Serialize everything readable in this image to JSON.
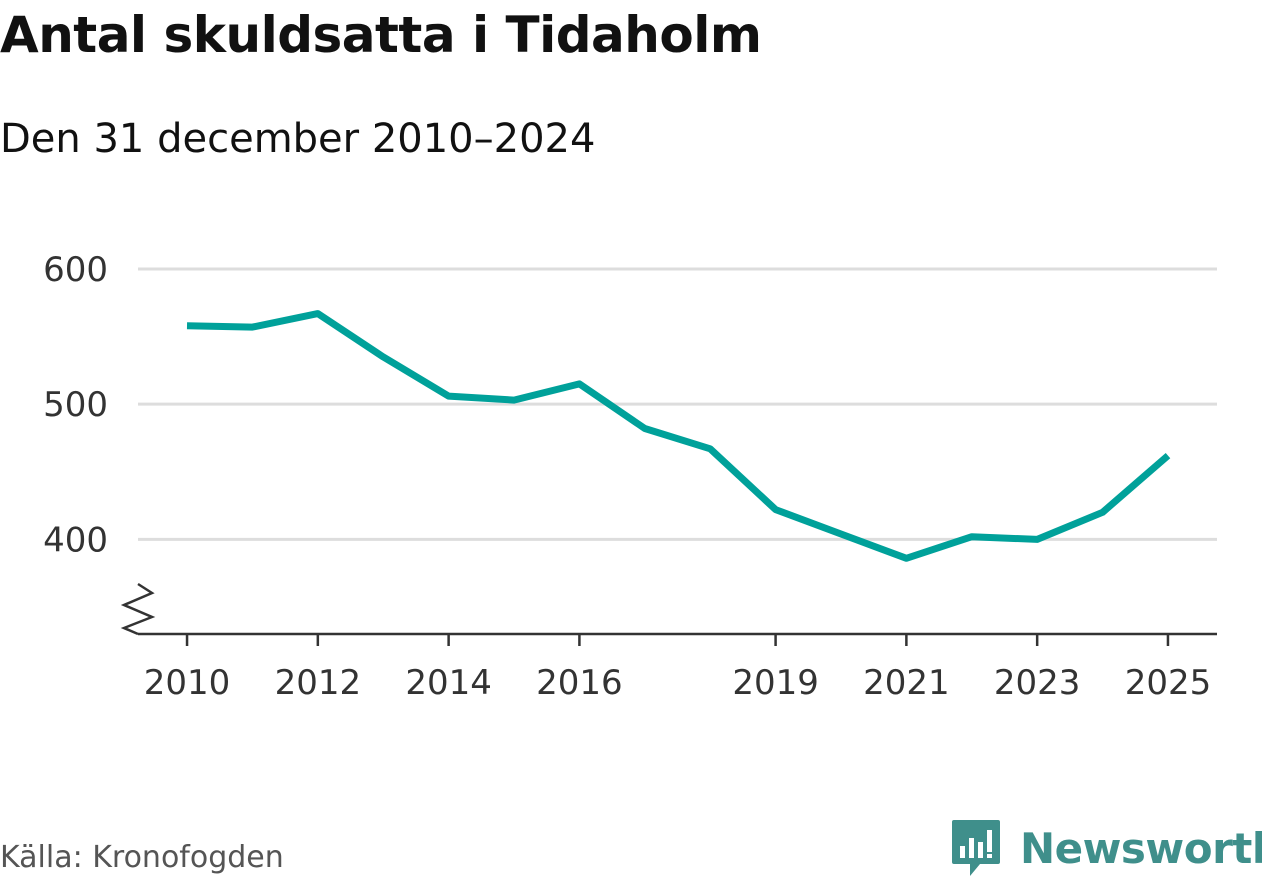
{
  "header": {
    "title": "Antal skuldsatta i Tidaholm",
    "subtitle": "Den 31 december 2010–2024"
  },
  "footer": {
    "source": "Källa: Kronofogden",
    "brand": "Newsworthy"
  },
  "colors": {
    "line": "#00a19a",
    "grid": "#dddddd",
    "axis": "#333333",
    "brand": "#3f8f8b"
  },
  "icons": {
    "logo": "newsworthy-logo-icon",
    "axis_break": "axis-break-icon"
  },
  "chart_data": {
    "type": "line",
    "title": "Antal skuldsatta i Tidaholm",
    "subtitle": "Den 31 december 2010–2024",
    "xlabel": "",
    "ylabel": "",
    "x": [
      2010,
      2011,
      2012,
      2013,
      2014,
      2015,
      2016,
      2017,
      2018,
      2019,
      2020,
      2021,
      2022,
      2023,
      2024,
      2025
    ],
    "series": [
      {
        "name": "Antal skuldsatta",
        "values": [
          558,
          557,
          567,
          535,
          506,
          503,
          515,
          482,
          467,
          422,
          404,
          386,
          402,
          400,
          420,
          462
        ]
      }
    ],
    "xticks": [
      "2010",
      "2012",
      "2014",
      "2016",
      "2019",
      "2021",
      "2023",
      "2025"
    ],
    "yticks": [
      "400",
      "500",
      "600"
    ],
    "ylim": [
      330,
      600
    ],
    "xlim": [
      2009.25,
      2025.75
    ],
    "grid": true,
    "axis_break": true,
    "legend": "none"
  }
}
